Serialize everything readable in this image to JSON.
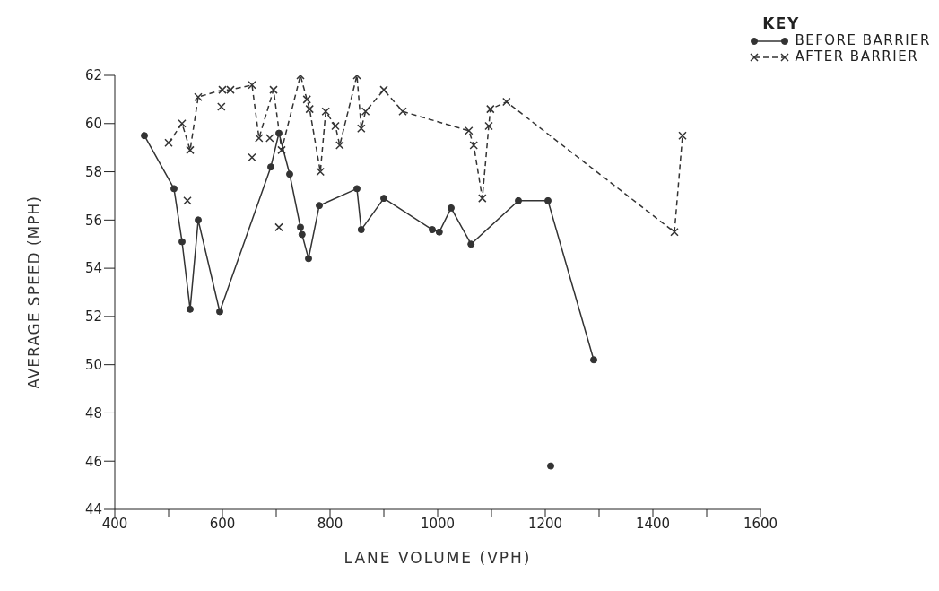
{
  "chart_data": {
    "type": "line",
    "xlabel": "LANE VOLUME (VPH)",
    "ylabel": "AVERAGE SPEED (MPH)",
    "legend_title": "KEY",
    "legend": "top right",
    "grid": false,
    "xlim": [
      400,
      1600
    ],
    "xticks": [
      400,
      {
        "value": 500,
        "label": null
      },
      600,
      {
        "value": 700,
        "label": null
      },
      800,
      {
        "value": 900,
        "label": null
      },
      1000,
      {
        "value": 1100,
        "label": null
      },
      1200,
      {
        "value": 1300,
        "label": null
      },
      1400,
      {
        "value": 1500,
        "label": null
      },
      1600
    ],
    "ylim": [
      44,
      62
    ],
    "yticks": [
      44,
      46,
      48,
      50,
      52,
      54,
      56,
      58,
      60,
      62
    ],
    "series": [
      {
        "name": "BEFORE BARRIER",
        "color": "#333333",
        "marker": "circle",
        "line_style": "solid",
        "x": [
          455,
          510,
          525,
          540,
          555,
          595,
          690,
          705,
          725,
          745,
          748,
          760,
          780,
          850,
          858,
          900,
          990,
          1003,
          1025,
          1062,
          1150,
          1205,
          1290
        ],
        "values": [
          59.5,
          57.3,
          55.1,
          52.3,
          56.0,
          52.2,
          58.2,
          59.6,
          57.9,
          55.7,
          55.4,
          54.4,
          56.6,
          57.3,
          55.6,
          56.9,
          55.6,
          55.5,
          56.5,
          55.0,
          56.8,
          56.8,
          50.2
        ]
      },
      {
        "name": "AFTER BARRIER",
        "color": "#333333",
        "marker": "cross",
        "line_style": "dashed",
        "x": [
          500,
          525,
          540,
          555,
          600,
          615,
          655,
          668,
          695,
          710,
          745,
          757,
          762,
          782,
          792,
          810,
          818,
          850,
          858,
          866,
          900,
          935,
          1058,
          1067,
          1083,
          1095,
          1098,
          1128,
          1440,
          1455
        ],
        "values": [
          59.2,
          60.0,
          58.9,
          61.1,
          61.4,
          61.4,
          61.6,
          59.4,
          61.4,
          58.9,
          62.0,
          61.0,
          60.6,
          58.0,
          60.5,
          59.9,
          59.1,
          62.0,
          59.8,
          60.5,
          61.4,
          60.5,
          59.7,
          59.1,
          56.9,
          59.9,
          60.6,
          60.9,
          55.5,
          59.5
        ]
      },
      {
        "type": "scatter",
        "color": "#333333",
        "marker": "circle",
        "x": [
          1210
        ],
        "values": [
          45.8
        ]
      },
      {
        "type": "scatter",
        "color": "#333333",
        "marker": "cross",
        "x": [
          535,
          598,
          655,
          688,
          705
        ],
        "values": [
          56.8,
          60.7,
          58.6,
          59.4,
          55.7
        ]
      }
    ]
  }
}
